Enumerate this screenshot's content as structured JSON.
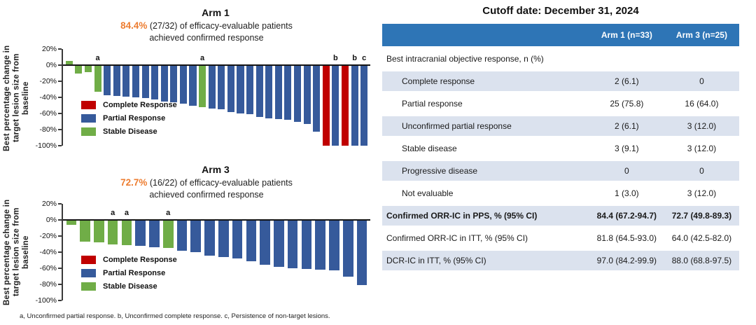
{
  "colors": {
    "cr": "#c00000",
    "pr": "#365a9b",
    "sd": "#70ad47",
    "highlight_orange": "#ed7d31",
    "table_header_blue": "#2e75b6",
    "table_row_shade": "#dbe2ee"
  },
  "axis": {
    "ylabel": "Best percentage change in target lesion size from baseline",
    "ylim": [
      -100,
      20
    ],
    "ticks": [
      {
        "label": "20%",
        "v": 20
      },
      {
        "label": "0%",
        "v": 0
      },
      {
        "label": "-20%",
        "v": -20
      },
      {
        "label": "-40%",
        "v": -40
      },
      {
        "label": "-60%",
        "v": -60
      },
      {
        "label": "-80%",
        "v": -80
      },
      {
        "label": "-100%",
        "v": -100
      }
    ]
  },
  "legend": [
    {
      "key": "cr",
      "label": "Complete Response"
    },
    {
      "key": "pr",
      "label": "Partial Response"
    },
    {
      "key": "sd",
      "label": "Stable Disease"
    }
  ],
  "chart_data": [
    {
      "type": "bar",
      "title": "Arm 1",
      "response_rate": "84.4%",
      "subtitle_rest": " (27/32) of efficacy-evaluable patients",
      "subtitle_line2": "achieved confirmed response",
      "ylabel": "Best percentage change in target lesion size from baseline",
      "ylim": [
        -100,
        20
      ],
      "legend_position": "inside-left",
      "grid": false,
      "bars": [
        {
          "v": 5,
          "cat": "sd"
        },
        {
          "v": -10,
          "cat": "sd"
        },
        {
          "v": -9,
          "cat": "sd"
        },
        {
          "v": -33,
          "cat": "sd",
          "note": "a"
        },
        {
          "v": -37,
          "cat": "pr"
        },
        {
          "v": -38,
          "cat": "pr"
        },
        {
          "v": -39,
          "cat": "pr"
        },
        {
          "v": -40,
          "cat": "pr"
        },
        {
          "v": -41,
          "cat": "pr"
        },
        {
          "v": -43,
          "cat": "pr"
        },
        {
          "v": -45,
          "cat": "pr"
        },
        {
          "v": -46,
          "cat": "pr"
        },
        {
          "v": -48,
          "cat": "pr"
        },
        {
          "v": -50,
          "cat": "pr"
        },
        {
          "v": -52,
          "cat": "sd",
          "note": "a"
        },
        {
          "v": -54,
          "cat": "pr"
        },
        {
          "v": -55,
          "cat": "pr"
        },
        {
          "v": -58,
          "cat": "pr"
        },
        {
          "v": -60,
          "cat": "pr"
        },
        {
          "v": -61,
          "cat": "pr"
        },
        {
          "v": -64,
          "cat": "pr"
        },
        {
          "v": -66,
          "cat": "pr"
        },
        {
          "v": -67,
          "cat": "pr"
        },
        {
          "v": -68,
          "cat": "pr"
        },
        {
          "v": -70,
          "cat": "pr"
        },
        {
          "v": -73,
          "cat": "pr"
        },
        {
          "v": -83,
          "cat": "pr"
        },
        {
          "v": -100,
          "cat": "cr"
        },
        {
          "v": -100,
          "cat": "pr",
          "note": "b"
        },
        {
          "v": -100,
          "cat": "cr"
        },
        {
          "v": -100,
          "cat": "pr",
          "note": "b"
        },
        {
          "v": -100,
          "cat": "pr",
          "note": "c"
        }
      ]
    },
    {
      "type": "bar",
      "title": "Arm 3",
      "response_rate": "72.7%",
      "subtitle_rest": " (16/22) of efficacy-evaluable patients",
      "subtitle_line2": "achieved confirmed response",
      "ylabel": "Best percentage change in target lesion size from baseline",
      "ylim": [
        -100,
        20
      ],
      "legend_position": "inside-left",
      "grid": false,
      "bars": [
        {
          "v": -6,
          "cat": "sd"
        },
        {
          "v": -27,
          "cat": "sd"
        },
        {
          "v": -28,
          "cat": "sd"
        },
        {
          "v": -30,
          "cat": "sd",
          "note": "a"
        },
        {
          "v": -31,
          "cat": "sd",
          "note": "a"
        },
        {
          "v": -32,
          "cat": "pr"
        },
        {
          "v": -34,
          "cat": "pr"
        },
        {
          "v": -35,
          "cat": "sd",
          "note": "a"
        },
        {
          "v": -38,
          "cat": "pr"
        },
        {
          "v": -40,
          "cat": "pr"
        },
        {
          "v": -44,
          "cat": "pr"
        },
        {
          "v": -46,
          "cat": "pr"
        },
        {
          "v": -48,
          "cat": "pr"
        },
        {
          "v": -51,
          "cat": "pr"
        },
        {
          "v": -56,
          "cat": "pr"
        },
        {
          "v": -58,
          "cat": "pr"
        },
        {
          "v": -60,
          "cat": "pr"
        },
        {
          "v": -61,
          "cat": "pr"
        },
        {
          "v": -62,
          "cat": "pr"
        },
        {
          "v": -63,
          "cat": "pr"
        },
        {
          "v": -70,
          "cat": "pr"
        },
        {
          "v": -81,
          "cat": "pr"
        }
      ]
    }
  ],
  "footnote": "a, Unconfirmed partial response. b, Unconfirmed complete response. c, Persistence of non-target lesions.",
  "table": {
    "title": "Cutoff date: December 31, 2024",
    "columns": [
      "",
      "Arm 1 (n=33)",
      "Arm 3 (n=25)"
    ],
    "rows": [
      {
        "label": "Best intracranial objective response, n (%)",
        "arm1": "",
        "arm3": "",
        "indent": false,
        "shaded": false,
        "bold": false
      },
      {
        "label": "Complete response",
        "arm1": "2 (6.1)",
        "arm3": "0",
        "indent": true,
        "shaded": true,
        "bold": false
      },
      {
        "label": "Partial response",
        "arm1": "25 (75.8)",
        "arm3": "16 (64.0)",
        "indent": true,
        "shaded": false,
        "bold": false
      },
      {
        "label": "Unconfirmed partial response",
        "arm1": "2 (6.1)",
        "arm3": "3 (12.0)",
        "indent": true,
        "shaded": true,
        "bold": false
      },
      {
        "label": "Stable disease",
        "arm1": "3 (9.1)",
        "arm3": "3 (12.0)",
        "indent": true,
        "shaded": false,
        "bold": false
      },
      {
        "label": "Progressive disease",
        "arm1": "0",
        "arm3": "0",
        "indent": true,
        "shaded": true,
        "bold": false
      },
      {
        "label": "Not evaluable",
        "arm1": "1 (3.0)",
        "arm3": "3 (12.0)",
        "indent": true,
        "shaded": false,
        "bold": false
      },
      {
        "label": "Confirmed ORR-IC in PPS, % (95% CI)",
        "arm1": "84.4 (67.2-94.7)",
        "arm3": "72.7 (49.8-89.3)",
        "indent": false,
        "shaded": true,
        "bold": true
      },
      {
        "label": "Confirmed ORR-IC in ITT, % (95% CI)",
        "arm1": "81.8 (64.5-93.0)",
        "arm3": "64.0 (42.5-82.0)",
        "indent": false,
        "shaded": false,
        "bold": false
      },
      {
        "label": "DCR-IC in ITT, % (95% CI)",
        "arm1": "97.0 (84.2-99.9)",
        "arm3": "88.0 (68.8-97.5)",
        "indent": false,
        "shaded": true,
        "bold": false
      }
    ]
  }
}
